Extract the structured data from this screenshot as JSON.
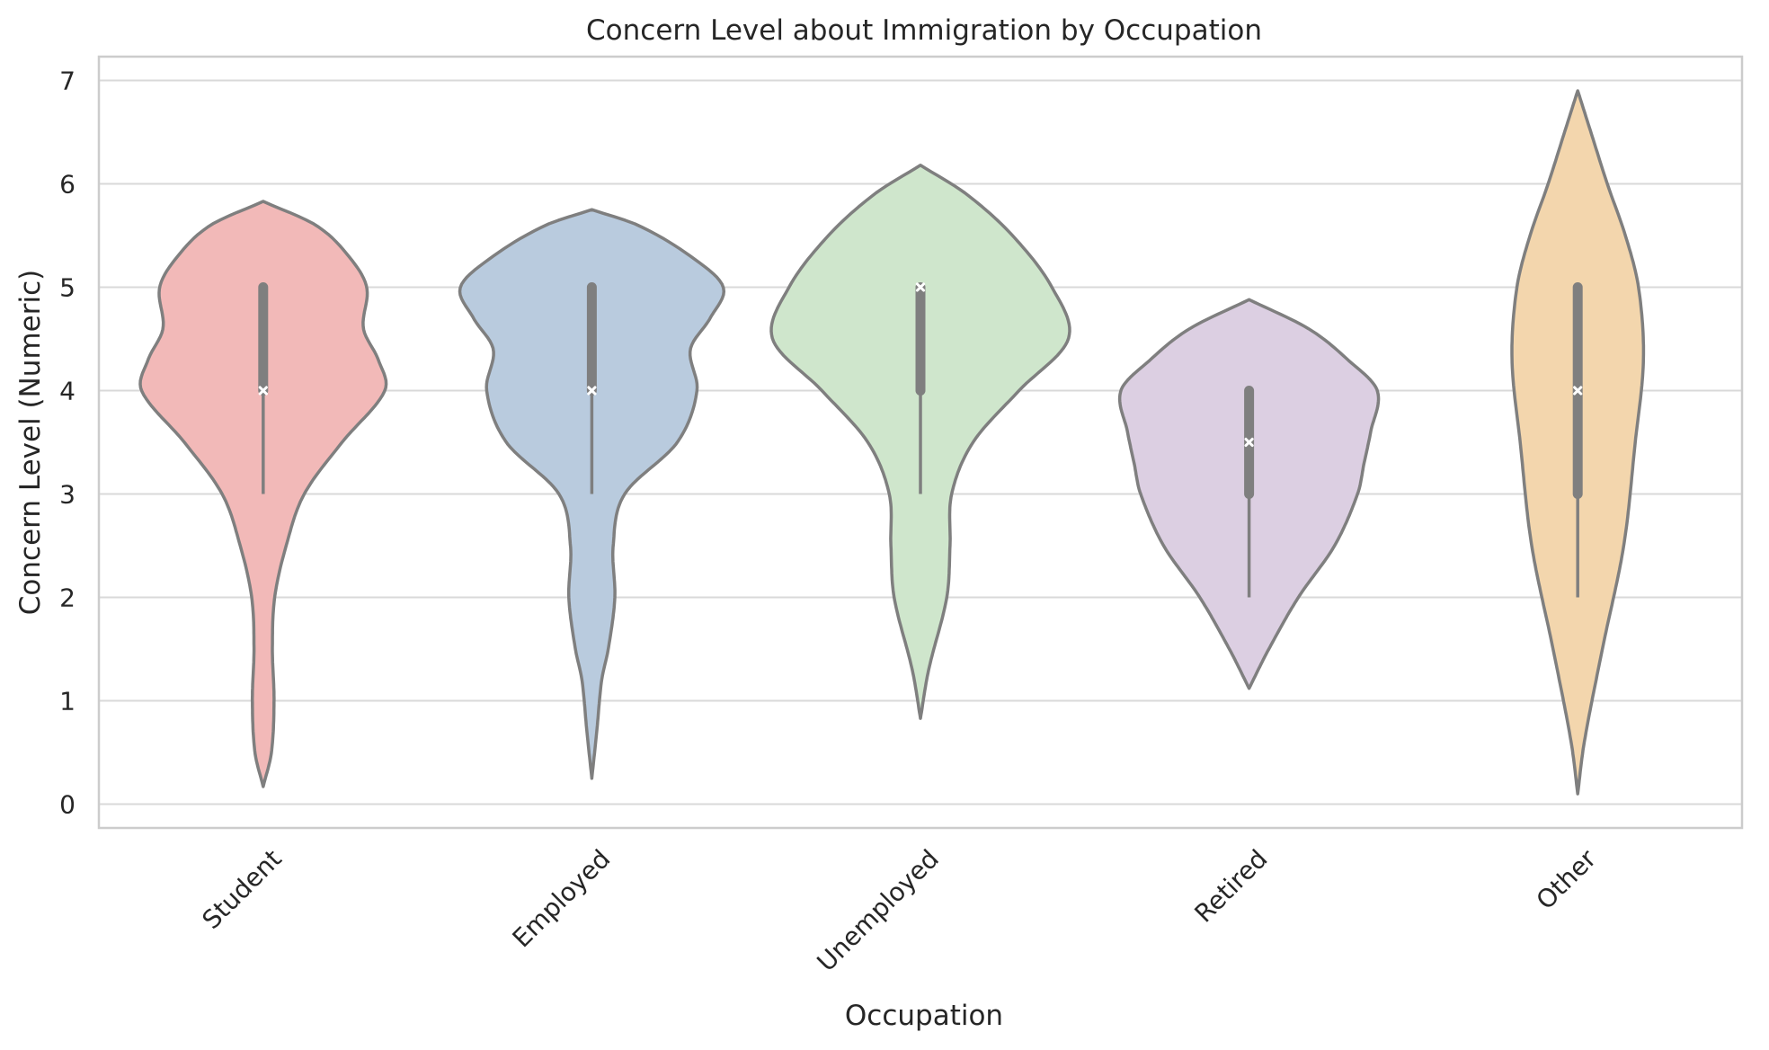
{
  "chart_data": {
    "type": "violin",
    "title": "Concern Level about Immigration by Occupation",
    "xlabel": "Occupation",
    "ylabel": "Concern Level (Numeric)",
    "ylim": [
      -0.23,
      7.23
    ],
    "yticks": [
      0,
      1,
      2,
      3,
      4,
      5,
      6,
      7
    ],
    "ytick_labels": [
      "0",
      "1",
      "2",
      "3",
      "4",
      "5",
      "6",
      "7"
    ],
    "grid": "horizontal",
    "categories": [
      "Student",
      "Employed",
      "Unemployed",
      "Retired",
      "Other"
    ],
    "colors": [
      "#f2b9b8",
      "#b9cbde",
      "#cfe6cc",
      "#dccfe2",
      "#f3d6ad"
    ],
    "outline_color": "#7f7f7f",
    "violins": [
      {
        "category": "Student",
        "min": 0.17,
        "max": 5.83,
        "whisker": [
          3,
          5
        ],
        "box": [
          4,
          5
        ],
        "median": 4,
        "profile": [
          [
            0.17,
            0.0
          ],
          [
            0.5,
            0.025
          ],
          [
            1.0,
            0.033
          ],
          [
            1.5,
            0.028
          ],
          [
            2.0,
            0.035
          ],
          [
            2.5,
            0.07
          ],
          [
            3.0,
            0.125
          ],
          [
            3.5,
            0.24
          ],
          [
            4.0,
            0.37
          ],
          [
            4.3,
            0.35
          ],
          [
            4.6,
            0.305
          ],
          [
            5.0,
            0.315
          ],
          [
            5.3,
            0.26
          ],
          [
            5.6,
            0.16
          ],
          [
            5.83,
            0.0
          ]
        ]
      },
      {
        "category": "Employed",
        "min": 0.25,
        "max": 5.75,
        "whisker": [
          3,
          5
        ],
        "box": [
          4,
          5
        ],
        "median": 4,
        "profile": [
          [
            0.25,
            0.0
          ],
          [
            0.7,
            0.015
          ],
          [
            1.2,
            0.03
          ],
          [
            1.5,
            0.05
          ],
          [
            2.0,
            0.07
          ],
          [
            2.5,
            0.065
          ],
          [
            3.0,
            0.1
          ],
          [
            3.5,
            0.26
          ],
          [
            4.0,
            0.32
          ],
          [
            4.4,
            0.3
          ],
          [
            4.7,
            0.36
          ],
          [
            5.0,
            0.4
          ],
          [
            5.3,
            0.3
          ],
          [
            5.6,
            0.14
          ],
          [
            5.75,
            0.0
          ]
        ]
      },
      {
        "category": "Unemployed",
        "min": 0.83,
        "max": 6.18,
        "whisker": [
          3,
          5
        ],
        "box": [
          4,
          5
        ],
        "median": 5,
        "profile": [
          [
            0.83,
            0.0
          ],
          [
            1.3,
            0.025
          ],
          [
            2.0,
            0.08
          ],
          [
            2.5,
            0.09
          ],
          [
            3.0,
            0.095
          ],
          [
            3.5,
            0.16
          ],
          [
            4.0,
            0.3
          ],
          [
            4.5,
            0.45
          ],
          [
            5.0,
            0.4
          ],
          [
            5.5,
            0.28
          ],
          [
            5.9,
            0.14
          ],
          [
            6.18,
            0.0
          ]
        ]
      },
      {
        "category": "Retired",
        "min": 1.12,
        "max": 4.88,
        "whisker": [
          2,
          4
        ],
        "box": [
          3,
          4
        ],
        "median": 3.5,
        "profile": [
          [
            1.12,
            0.0
          ],
          [
            1.5,
            0.06
          ],
          [
            2.0,
            0.15
          ],
          [
            2.5,
            0.26
          ],
          [
            3.0,
            0.33
          ],
          [
            3.3,
            0.35
          ],
          [
            3.6,
            0.37
          ],
          [
            4.0,
            0.39
          ],
          [
            4.3,
            0.3
          ],
          [
            4.6,
            0.18
          ],
          [
            4.88,
            0.0
          ]
        ]
      },
      {
        "category": "Other",
        "min": 0.1,
        "max": 6.9,
        "whisker": [
          2,
          5
        ],
        "box": [
          3,
          5
        ],
        "median": 4,
        "profile": [
          [
            0.1,
            0.0
          ],
          [
            0.6,
            0.02
          ],
          [
            1.5,
            0.075
          ],
          [
            2.5,
            0.14
          ],
          [
            3.5,
            0.175
          ],
          [
            4.3,
            0.2
          ],
          [
            5.0,
            0.185
          ],
          [
            5.5,
            0.145
          ],
          [
            6.0,
            0.09
          ],
          [
            6.5,
            0.04
          ],
          [
            6.9,
            0.0
          ]
        ]
      }
    ]
  }
}
